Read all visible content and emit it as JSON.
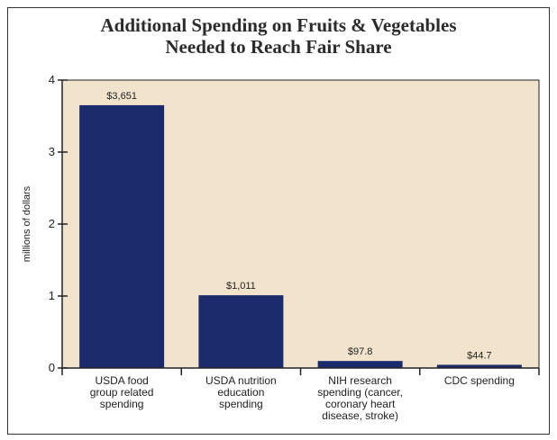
{
  "chart_data": {
    "type": "bar",
    "title": [
      "Additional Spending on Fruits & Vegetables",
      "Needed to Reach Fair Share"
    ],
    "ylabel": "millions of dollars",
    "xlabel": "",
    "ylim": [
      0,
      4
    ],
    "yticks": [
      "0",
      "1",
      "2",
      "3",
      "4"
    ],
    "categories": [
      [
        "USDA food",
        "group related",
        "spending"
      ],
      [
        "USDA nutrition",
        "education",
        "spending"
      ],
      [
        "NIH research",
        "spending (cancer,",
        "coronary heart",
        "disease, stroke)"
      ],
      [
        "CDC spending"
      ]
    ],
    "values": [
      3.651,
      1.011,
      0.0978,
      0.0447
    ],
    "data_labels": [
      "$3,651",
      "$1,011",
      "$97.8",
      "$44.7"
    ],
    "colors": {
      "bar": "#1b2a6b",
      "plot_bg": "#f2e4cc",
      "axis": "#222222"
    },
    "grid": false
  }
}
